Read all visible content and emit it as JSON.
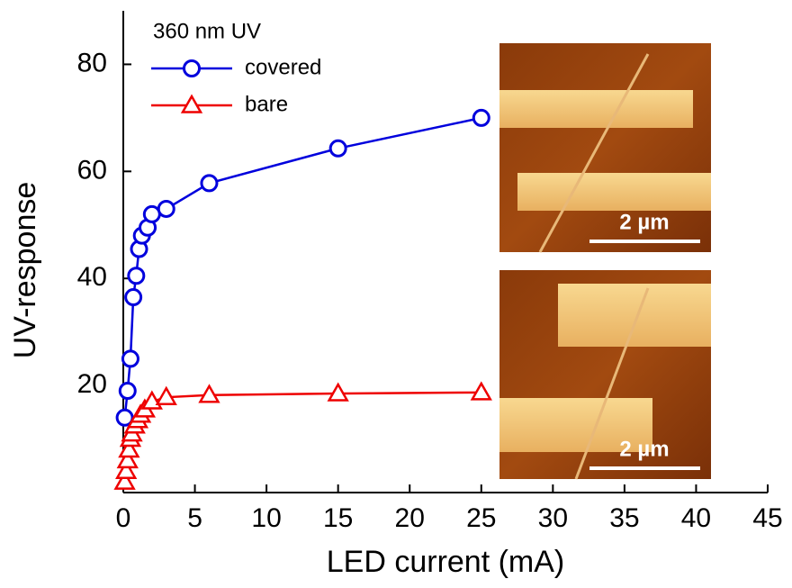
{
  "chart_data": {
    "type": "line",
    "xlabel": "LED current (mA)",
    "ylabel": "UV-response",
    "legend_title": "360 nm UV",
    "legend": "upper-left",
    "xlim": [
      0,
      45
    ],
    "xticks": [
      0,
      5,
      10,
      15,
      20,
      25,
      30,
      35,
      40,
      45
    ],
    "ylim": [
      0,
      90
    ],
    "yticks": [
      20,
      40,
      60,
      80
    ],
    "series": [
      {
        "name": "covered",
        "color": "#0000dd",
        "marker": "circle",
        "x": [
          0.1,
          0.3,
          0.5,
          0.7,
          0.9,
          1.1,
          1.3,
          1.7,
          2,
          3,
          6,
          15,
          25
        ],
        "values": [
          14,
          19,
          25,
          36.5,
          40.5,
          45.5,
          48,
          49.5,
          52,
          53,
          57.8,
          64.3,
          70
        ]
      },
      {
        "name": "bare",
        "color": "#ee0000",
        "marker": "triangle",
        "x": [
          0.1,
          0.2,
          0.3,
          0.4,
          0.5,
          0.6,
          0.8,
          1,
          1.2,
          1.5,
          2,
          3,
          6,
          15,
          25
        ],
        "values": [
          2,
          4,
          6,
          8,
          10,
          11,
          12.5,
          13.5,
          14.5,
          15.5,
          17,
          17.8,
          18.2,
          18.5,
          18.7
        ]
      }
    ],
    "insets": [
      {
        "scale_label": "2 µm"
      },
      {
        "scale_label": "2 µm"
      }
    ]
  }
}
